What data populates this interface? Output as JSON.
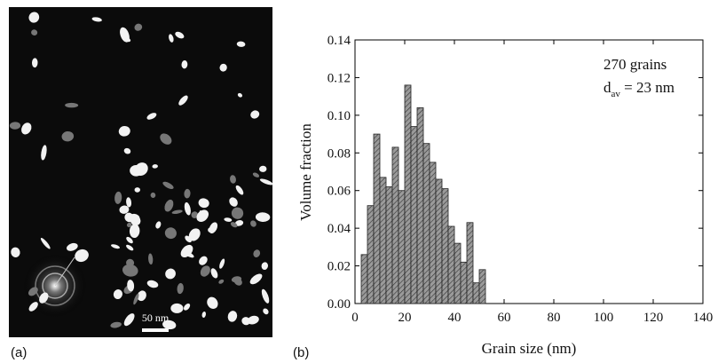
{
  "panels": {
    "a_label": "(a)",
    "b_label": "(b)",
    "scale_bar": "50 nm"
  },
  "chart_data": {
    "type": "histogram",
    "xlabel": "Grain size (nm)",
    "ylabel": "Volume fraction",
    "annotation": {
      "line1": "270 grains",
      "base": "d",
      "sub": "av",
      "rest": " = 23 nm"
    },
    "bins": [
      2.5,
      5,
      7.5,
      10,
      12.5,
      15,
      17.5,
      20,
      22.5,
      25,
      27.5,
      30,
      32.5,
      35,
      37.5,
      40,
      42.5,
      45,
      47.5,
      50,
      52.5
    ],
    "values": [
      0.026,
      0.052,
      0.09,
      0.067,
      0.062,
      0.083,
      0.06,
      0.116,
      0.094,
      0.104,
      0.085,
      0.075,
      0.066,
      0.061,
      0.041,
      0.032,
      0.022,
      0.043,
      0.011,
      0.018
    ],
    "color": "#9a9a9a",
    "xlim": [
      0,
      140
    ],
    "xticks": [
      0,
      20,
      40,
      60,
      80,
      100,
      120,
      140
    ],
    "ylim": [
      0,
      0.14
    ],
    "yticks": [
      {
        "value": 0,
        "label": "0.00"
      },
      {
        "value": 0.02,
        "label": "0.02"
      },
      {
        "value": 0.04,
        "label": "0.04"
      },
      {
        "value": 0.06,
        "label": "0.06"
      },
      {
        "value": 0.08,
        "label": "0.08"
      },
      {
        "value": 0.1,
        "label": "0.10"
      },
      {
        "value": 0.12,
        "label": "0.12"
      },
      {
        "value": 0.14,
        "label": "0.14"
      }
    ]
  }
}
